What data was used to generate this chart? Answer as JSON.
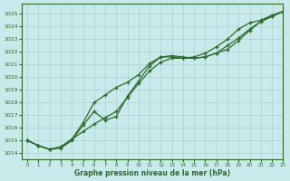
{
  "xlabel": "Graphe pression niveau de la mer (hPa)",
  "background_color": "#c8eaea",
  "grid_color": "#aed0d0",
  "line_color": "#2d6a2d",
  "xlim": [
    -0.5,
    23
  ],
  "ylim": [
    1013.5,
    1025.8
  ],
  "yticks": [
    1014,
    1015,
    1016,
    1017,
    1018,
    1019,
    1020,
    1021,
    1022,
    1023,
    1024,
    1025
  ],
  "xticks": [
    0,
    1,
    2,
    3,
    4,
    5,
    6,
    7,
    8,
    9,
    10,
    11,
    12,
    13,
    14,
    15,
    16,
    17,
    18,
    19,
    20,
    21,
    22,
    23
  ],
  "series1_x": [
    0,
    1,
    2,
    3,
    4,
    5,
    6,
    7,
    8,
    9,
    10,
    11,
    12,
    13,
    14,
    15,
    16,
    17,
    18,
    19,
    20,
    21,
    22,
    23
  ],
  "series1_y": [
    1015.0,
    1014.6,
    1014.3,
    1014.4,
    1015.0,
    1016.2,
    1017.3,
    1016.6,
    1016.9,
    1018.5,
    1019.7,
    1020.9,
    1021.6,
    1021.6,
    1021.5,
    1021.5,
    1021.6,
    1021.9,
    1022.5,
    1023.1,
    1023.8,
    1024.4,
    1024.8,
    1025.2
  ],
  "series2_x": [
    0,
    1,
    2,
    3,
    4,
    5,
    6,
    7,
    8,
    9,
    10,
    11,
    12,
    13,
    14,
    15,
    16,
    17,
    18,
    19,
    20,
    21,
    22,
    23
  ],
  "series2_y": [
    1015.0,
    1014.6,
    1014.3,
    1014.5,
    1015.1,
    1016.4,
    1018.0,
    1018.6,
    1019.2,
    1019.6,
    1020.2,
    1021.1,
    1021.6,
    1021.7,
    1021.6,
    1021.5,
    1021.6,
    1021.9,
    1022.2,
    1022.9,
    1023.7,
    1024.4,
    1024.8,
    1025.2
  ],
  "series3_x": [
    0,
    1,
    2,
    3,
    4,
    5,
    6,
    7,
    8,
    9,
    10,
    11,
    12,
    13,
    14,
    15,
    16,
    17,
    18,
    19,
    20,
    21,
    22,
    23
  ],
  "series3_y": [
    1015.0,
    1014.6,
    1014.3,
    1014.5,
    1015.1,
    1015.7,
    1016.3,
    1016.8,
    1017.3,
    1018.4,
    1019.5,
    1020.5,
    1021.2,
    1021.5,
    1021.5,
    1021.6,
    1021.9,
    1022.4,
    1023.0,
    1023.8,
    1024.3,
    1024.5,
    1024.9,
    1025.2
  ]
}
